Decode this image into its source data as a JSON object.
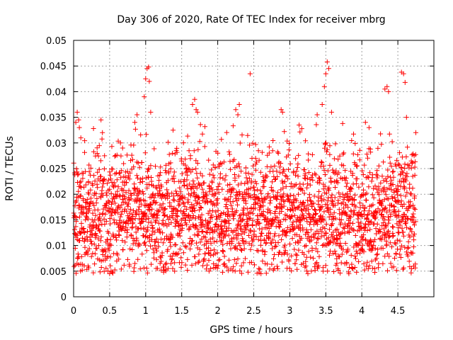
{
  "chart_data": {
    "type": "scatter",
    "title": "Day 306 of 2020, Rate Of TEC Index for receiver mbrg",
    "xlabel": "GPS time / hours",
    "ylabel": "ROTI / TECUs",
    "xlim": [
      0,
      5
    ],
    "ylim": [
      0,
      0.05
    ],
    "xticks": [
      0,
      0.5,
      1,
      1.5,
      2,
      2.5,
      3,
      3.5,
      4,
      4.5
    ],
    "xtick_labels": [
      "0",
      "0.5",
      "1",
      "1.5",
      "2",
      "2.5",
      "3",
      "3.5",
      "4",
      "4.5"
    ],
    "yticks": [
      0,
      0.005,
      0.01,
      0.015,
      0.02,
      0.025,
      0.03,
      0.035,
      0.04,
      0.045,
      0.05
    ],
    "ytick_labels": [
      "0",
      "0.005",
      "0.01",
      "0.015",
      "0.02",
      "0.025",
      "0.03",
      "0.035",
      "0.04",
      "0.045",
      "0.05"
    ],
    "grid": true,
    "marker": "plus",
    "color": "#ff0000",
    "x_range_data": [
      0,
      4.75
    ],
    "density": {
      "typical_range": [
        0.006,
        0.028
      ],
      "core_range": [
        0.01,
        0.022
      ]
    },
    "series": [
      {
        "name": "ROTI",
        "points": [
          [
            0.03,
            0.034
          ],
          [
            0.05,
            0.036
          ],
          [
            0.07,
            0.0345
          ],
          [
            0.08,
            0.033
          ],
          [
            0.1,
            0.031
          ],
          [
            0.38,
            0.0345
          ],
          [
            0.4,
            0.032
          ],
          [
            0.65,
            0.03
          ],
          [
            0.68,
            0.029
          ],
          [
            0.85,
            0.034
          ],
          [
            0.88,
            0.0355
          ],
          [
            1.0,
            0.0425
          ],
          [
            1.02,
            0.0445
          ],
          [
            1.04,
            0.0448
          ],
          [
            1.05,
            0.042
          ],
          [
            1.07,
            0.036
          ],
          [
            0.98,
            0.039
          ],
          [
            1.38,
            0.0325
          ],
          [
            1.65,
            0.0375
          ],
          [
            1.68,
            0.0385
          ],
          [
            1.7,
            0.0365
          ],
          [
            1.72,
            0.036
          ],
          [
            2.25,
            0.0365
          ],
          [
            2.28,
            0.0355
          ],
          [
            2.3,
            0.0375
          ],
          [
            2.45,
            0.0435
          ],
          [
            2.88,
            0.0365
          ],
          [
            2.9,
            0.036
          ],
          [
            3.13,
            0.0335
          ],
          [
            3.38,
            0.0355
          ],
          [
            3.45,
            0.0375
          ],
          [
            3.48,
            0.041
          ],
          [
            3.5,
            0.0435
          ],
          [
            3.52,
            0.0458
          ],
          [
            3.54,
            0.0445
          ],
          [
            3.58,
            0.036
          ],
          [
            4.05,
            0.034
          ],
          [
            4.1,
            0.033
          ],
          [
            4.32,
            0.0405
          ],
          [
            4.35,
            0.041
          ],
          [
            4.37,
            0.04
          ],
          [
            4.55,
            0.0438
          ],
          [
            4.58,
            0.0435
          ],
          [
            4.6,
            0.0418
          ],
          [
            4.62,
            0.035
          ],
          [
            4.75,
            0.032
          ],
          [
            0.5,
            0.0045
          ],
          [
            0.52,
            0.005
          ],
          [
            1.88,
            0.005
          ],
          [
            1.9,
            0.0055
          ],
          [
            2.6,
            0.0045
          ],
          [
            3.3,
            0.005
          ],
          [
            3.82,
            0.0045
          ],
          [
            4.72,
            0.006
          ],
          [
            0.2,
            0.006
          ],
          [
            1.2,
            0.0065
          ],
          [
            2.1,
            0.006
          ],
          [
            4.18,
            0.0055
          ]
        ]
      }
    ]
  }
}
